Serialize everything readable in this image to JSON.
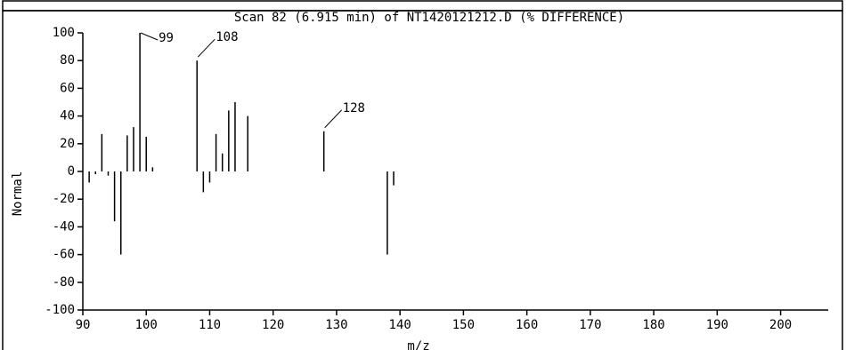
{
  "chart_data": {
    "type": "bar",
    "title": "Scan 82 (6.915 min) of NT1420121212.D (% DIFFERENCE)",
    "x_label": "m/z",
    "y_label": "Normal",
    "x": [
      91,
      92,
      93,
      94,
      95,
      96,
      97,
      98,
      99,
      100,
      101,
      108,
      109,
      110,
      111,
      112,
      113,
      114,
      116,
      128,
      138,
      139
    ],
    "values": [
      -8,
      -2,
      27,
      -3,
      -36,
      -60,
      26,
      32,
      100,
      25,
      3,
      80,
      -15,
      -8,
      27,
      13,
      44,
      50,
      40,
      29,
      -60,
      -10
    ],
    "color": "#000000",
    "annotations": [
      {
        "text": "99",
        "x": 99
      },
      {
        "text": "108",
        "x": 108
      },
      {
        "text": "128",
        "x": 128
      }
    ],
    "xlim": [
      90,
      207.5
    ],
    "xticks": [
      90,
      100,
      110,
      120,
      130,
      140,
      150,
      160,
      170,
      180,
      190,
      200
    ],
    "ylim": [
      -100,
      100
    ],
    "yticks": [
      -100,
      -80,
      -60,
      -40,
      -20,
      0,
      20,
      40,
      60,
      80,
      100
    ]
  }
}
